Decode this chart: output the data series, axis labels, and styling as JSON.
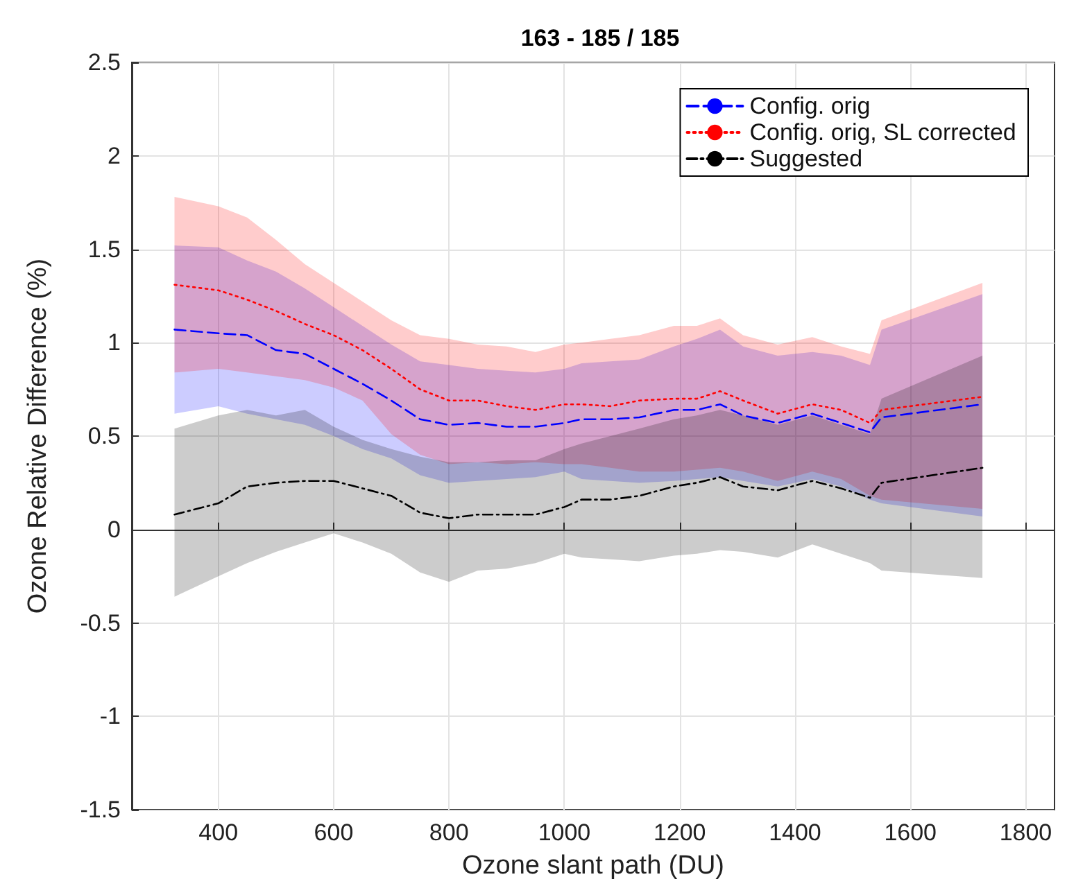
{
  "chart_data": {
    "type": "line",
    "title": "163 - 185 / 185",
    "xlabel": "Ozone slant path (DU)",
    "ylabel": "Ozone Relative Difference (%)",
    "x": [
      324,
      400,
      450,
      500,
      550,
      600,
      650,
      700,
      750,
      800,
      850,
      900,
      950,
      1000,
      1030,
      1080,
      1130,
      1190,
      1230,
      1270,
      1310,
      1370,
      1430,
      1480,
      1530,
      1550,
      1725
    ],
    "series": [
      {
        "name": "Config. orig",
        "color": "#0000ff",
        "line_style": "dashed",
        "values": [
          1.07,
          1.05,
          1.04,
          0.96,
          0.94,
          0.86,
          0.78,
          0.69,
          0.59,
          0.56,
          0.57,
          0.55,
          0.55,
          0.57,
          0.59,
          0.59,
          0.6,
          0.64,
          0.64,
          0.67,
          0.61,
          0.57,
          0.62,
          0.57,
          0.52,
          0.6,
          0.67
        ],
        "lower": [
          0.62,
          0.66,
          0.62,
          0.59,
          0.56,
          0.5,
          0.43,
          0.38,
          0.29,
          0.25,
          0.26,
          0.27,
          0.28,
          0.31,
          0.27,
          0.26,
          0.25,
          0.26,
          0.27,
          0.28,
          0.26,
          0.23,
          0.27,
          0.23,
          0.16,
          0.14,
          0.07
        ],
        "upper": [
          1.52,
          1.51,
          1.44,
          1.38,
          1.29,
          1.19,
          1.09,
          0.99,
          0.9,
          0.88,
          0.86,
          0.85,
          0.84,
          0.86,
          0.89,
          0.9,
          0.91,
          0.98,
          1.02,
          1.07,
          0.98,
          0.93,
          0.95,
          0.93,
          0.88,
          1.07,
          1.26
        ]
      },
      {
        "name": "Config. orig, SL corrected",
        "color": "#ff0000",
        "line_style": "dotted",
        "values": [
          1.31,
          1.28,
          1.23,
          1.17,
          1.1,
          1.04,
          0.96,
          0.86,
          0.75,
          0.69,
          0.69,
          0.66,
          0.64,
          0.67,
          0.67,
          0.66,
          0.69,
          0.7,
          0.7,
          0.74,
          0.69,
          0.62,
          0.67,
          0.64,
          0.57,
          0.64,
          0.71
        ],
        "lower": [
          0.84,
          0.86,
          0.84,
          0.82,
          0.8,
          0.76,
          0.69,
          0.51,
          0.4,
          0.35,
          0.36,
          0.35,
          0.36,
          0.35,
          0.35,
          0.33,
          0.31,
          0.31,
          0.32,
          0.33,
          0.31,
          0.26,
          0.31,
          0.27,
          0.18,
          0.16,
          0.11
        ],
        "upper": [
          1.78,
          1.73,
          1.67,
          1.55,
          1.42,
          1.32,
          1.22,
          1.12,
          1.04,
          1.02,
          0.99,
          0.98,
          0.95,
          0.99,
          1.0,
          1.02,
          1.04,
          1.09,
          1.09,
          1.13,
          1.04,
          0.99,
          1.03,
          0.98,
          0.94,
          1.12,
          1.32
        ]
      },
      {
        "name": "Suggested",
        "color": "#000000",
        "line_style": "dashdot",
        "values": [
          0.08,
          0.14,
          0.23,
          0.25,
          0.26,
          0.26,
          0.22,
          0.18,
          0.09,
          0.06,
          0.08,
          0.08,
          0.08,
          0.12,
          0.16,
          0.16,
          0.18,
          0.23,
          0.25,
          0.28,
          0.23,
          0.21,
          0.26,
          0.22,
          0.17,
          0.25,
          0.33
        ],
        "lower": [
          -0.36,
          -0.25,
          -0.18,
          -0.12,
          -0.07,
          -0.02,
          -0.07,
          -0.13,
          -0.23,
          -0.28,
          -0.22,
          -0.21,
          -0.18,
          -0.13,
          -0.15,
          -0.16,
          -0.17,
          -0.14,
          -0.13,
          -0.11,
          -0.12,
          -0.15,
          -0.08,
          -0.13,
          -0.18,
          -0.22,
          -0.26
        ],
        "upper": [
          0.54,
          0.61,
          0.64,
          0.61,
          0.64,
          0.55,
          0.48,
          0.43,
          0.39,
          0.36,
          0.36,
          0.37,
          0.37,
          0.43,
          0.46,
          0.5,
          0.54,
          0.59,
          0.61,
          0.64,
          0.61,
          0.56,
          0.61,
          0.56,
          0.51,
          0.7,
          0.93
        ]
      }
    ],
    "xlim": [
      250,
      1850
    ],
    "xticks": [
      400,
      600,
      800,
      1000,
      1200,
      1400,
      1600,
      1800
    ],
    "ylim": [
      -1.5,
      2.5
    ],
    "yticks": [
      -1.5,
      -1,
      -0.5,
      0,
      0.5,
      1,
      1.5,
      2,
      2.5
    ],
    "grid": true,
    "legend": "top right",
    "marker": "none"
  }
}
